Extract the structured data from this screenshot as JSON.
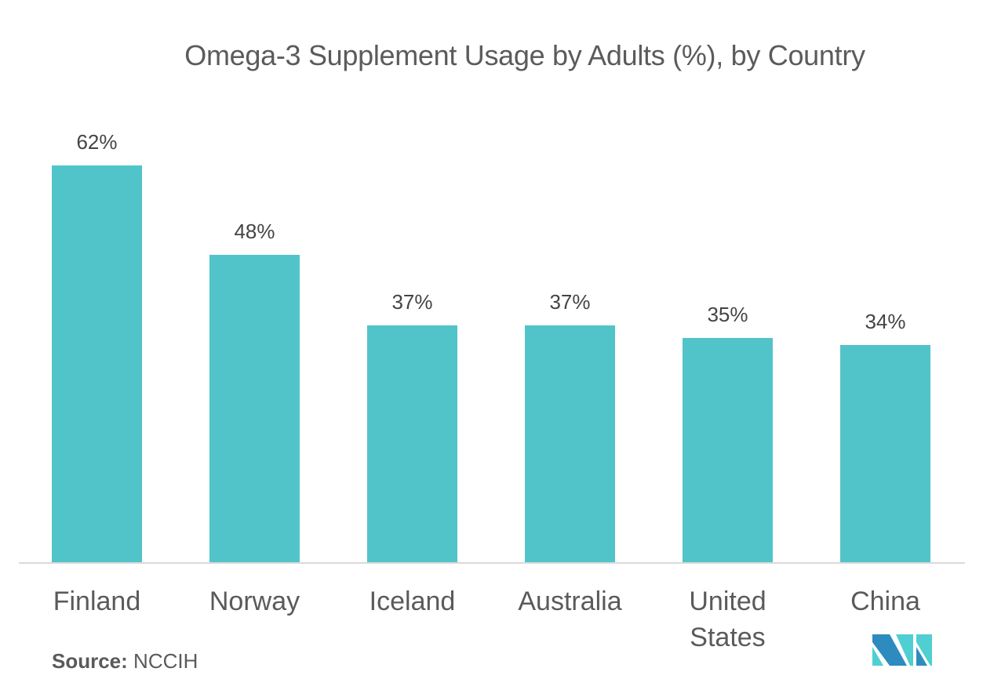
{
  "chart_data": {
    "type": "bar",
    "title": "Omega-3 Supplement Usage by Adults (%), by Country",
    "categories": [
      "Finland",
      "Norway",
      "Iceland",
      "Australia",
      "United States",
      "China"
    ],
    "values": [
      62,
      48,
      37,
      37,
      35,
      34
    ],
    "value_labels": [
      "62%",
      "48%",
      "37%",
      "37%",
      "35%",
      "34%"
    ],
    "xlabel": "",
    "ylabel": "",
    "ylim": [
      0,
      62
    ],
    "grid": false,
    "legend": null,
    "bar_color": "#51c4ca"
  },
  "title": "Omega-3 Supplement Usage by Adults (%), by Country",
  "source": {
    "label": "Source:",
    "value": "NCCIH"
  },
  "categories_display": [
    [
      "Finland"
    ],
    [
      "Norway"
    ],
    [
      "Iceland"
    ],
    [
      "Australia"
    ],
    [
      "United",
      "States"
    ],
    [
      "China"
    ]
  ],
  "logo": {
    "icon": "mordor-intelligence-logo-icon",
    "colors": [
      "#2e8bc0",
      "#4fcfd2"
    ]
  }
}
